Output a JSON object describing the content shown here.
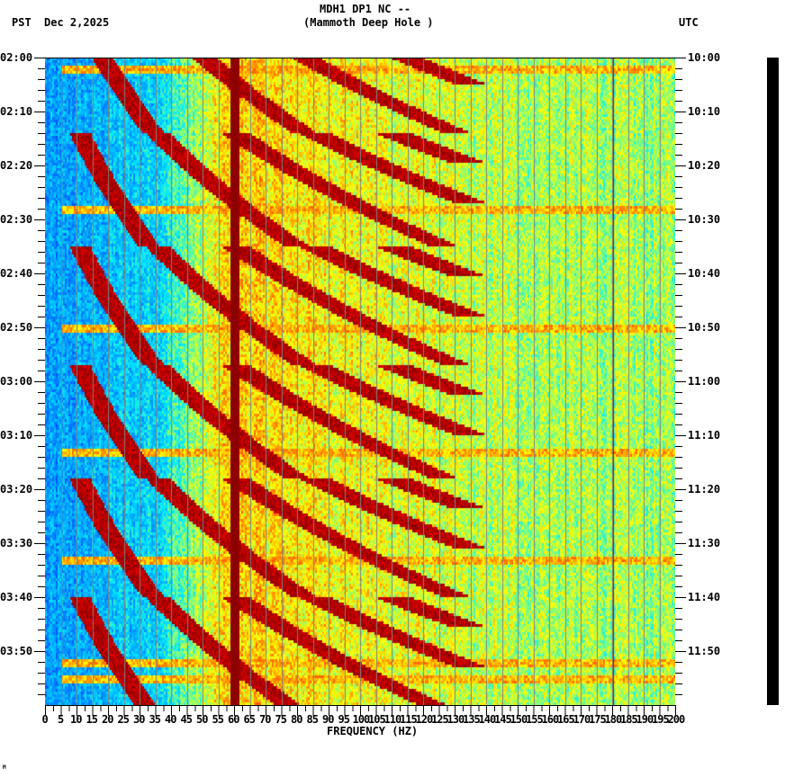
{
  "header": {
    "station_line": "MDH1 DP1 NC --",
    "station_name": "(Mammoth Deep Hole )",
    "left_timezone": "PST",
    "date": "Dec 2,2025",
    "right_timezone": "UTC"
  },
  "axes": {
    "x_title": "FREQUENCY (HZ)",
    "x_ticks": [
      "0",
      "5",
      "10",
      "15",
      "20",
      "25",
      "30",
      "35",
      "40",
      "45",
      "50",
      "55",
      "60",
      "65",
      "70",
      "75",
      "80",
      "85",
      "90",
      "95",
      "100",
      "105",
      "110",
      "115",
      "120",
      "125",
      "130",
      "135",
      "140",
      "145",
      "150",
      "155",
      "160",
      "165",
      "170",
      "175",
      "180",
      "185",
      "190",
      "195",
      "200"
    ],
    "left_time_ticks": [
      "02:00",
      "02:10",
      "02:20",
      "02:30",
      "02:40",
      "02:50",
      "03:00",
      "03:10",
      "03:20",
      "03:30",
      "03:40",
      "03:50"
    ],
    "right_time_ticks": [
      "10:00",
      "10:10",
      "10:20",
      "10:30",
      "10:40",
      "10:50",
      "11:00",
      "11:10",
      "11:20",
      "11:30",
      "11:40",
      "11:50"
    ]
  },
  "footer": {
    "corner_mark": "M"
  },
  "colors": {
    "background": "#ffffff",
    "gridline": "#808080",
    "text": "#000000",
    "amp_bar": "#000000",
    "colormap": [
      "#0050ff",
      "#00a0ff",
      "#00e8ff",
      "#80ff80",
      "#ffff00",
      "#ff8000",
      "#ff0000",
      "#8b0000"
    ]
  },
  "chart_data": {
    "type": "heatmap",
    "title": "MDH1 DP1 NC -- (Mammoth Deep Hole )",
    "subtitle": "Dec 2,2025",
    "xlabel": "FREQUENCY (HZ)",
    "ylabel_left": "PST",
    "ylabel_right": "UTC",
    "x_range_hz": [
      0,
      200
    ],
    "x_tick_step_hz": 5,
    "time_range_pst": [
      "02:00",
      "04:00"
    ],
    "time_range_utc": [
      "10:00",
      "12:00"
    ],
    "time_tick_step_min": 10,
    "minor_tick_step_min": 2,
    "grid": "vertical lines every 5 Hz",
    "persistent_lines_hz": [
      60,
      180
    ],
    "description": "Spectrogram with low power (blue) below ~40 Hz, high power (yellow/red) 40-130 Hz, moderate (green/yellow) 130-200 Hz. Strong continuous 60 Hz line. Repeating upward-sweeping harmonic chirps (dark red) restart roughly every 21-22 minutes.",
    "chirp_restart_minutes": [
      -8,
      14,
      35,
      57,
      78,
      100
    ],
    "chirp_start_hz": 20,
    "chirp_harmonics": [
      1,
      2,
      3,
      4,
      5,
      6
    ],
    "broadband_lines_minutes": [
      2,
      28,
      50,
      73,
      93,
      112,
      115
    ]
  }
}
